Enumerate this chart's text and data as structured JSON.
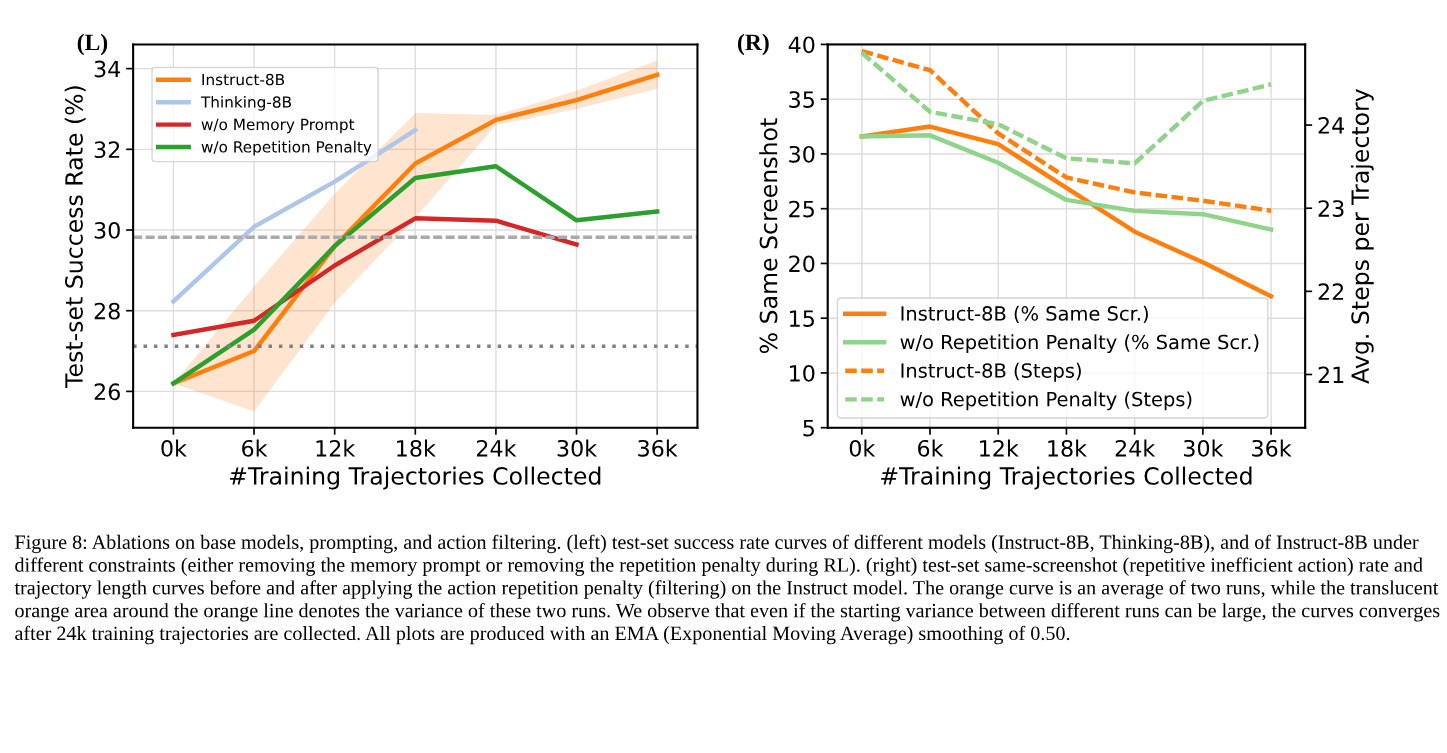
{
  "chart_data": [
    {
      "type": "line",
      "xlabel": "#Training Trajectories Collected",
      "ylabel": "Test-set Success Rate (%)",
      "x": [
        0,
        6,
        12,
        18,
        24,
        30,
        36
      ],
      "xlim": [
        -3,
        39
      ],
      "xticks": [
        {
          "value": 0,
          "label": "0k"
        },
        {
          "value": 6,
          "label": "6k"
        },
        {
          "value": 12,
          "label": "12k"
        },
        {
          "value": 18,
          "label": "18k"
        },
        {
          "value": 24,
          "label": "24k"
        },
        {
          "value": 30,
          "label": "30k"
        },
        {
          "value": 36,
          "label": "36k"
        }
      ],
      "ylim": [
        25.1,
        34.6
      ],
      "yticks": [
        26,
        28,
        30,
        32,
        34
      ],
      "series": [
        {
          "name": "Instruct-8B",
          "color": "#ff7f0e",
          "values": [
            26.2,
            27.0,
            29.6,
            31.65,
            32.73,
            33.22,
            33.85
          ],
          "lower": [
            26.2,
            25.5,
            28.2,
            30.3,
            32.6,
            33.0,
            33.5
          ],
          "upper": [
            26.2,
            28.6,
            30.9,
            32.9,
            32.85,
            33.45,
            34.2
          ]
        },
        {
          "name": "Thinking-8B",
          "color": "#aec7e8",
          "values": [
            28.23,
            30.08,
            31.2,
            32.48,
            null,
            null,
            null
          ]
        },
        {
          "name": "w/o Memory Prompt",
          "color": "#d62728",
          "values": [
            27.4,
            27.75,
            29.12,
            30.29,
            30.23,
            29.64,
            null
          ]
        },
        {
          "name": "w/o Repetition Penalty",
          "color": "#2ca02c",
          "values": [
            26.2,
            27.53,
            29.6,
            31.29,
            31.58,
            30.24,
            30.46
          ]
        }
      ],
      "ref_lines": [
        {
          "axis": "y",
          "value": 27.12,
          "color": "#808080",
          "line_style": "dotted"
        },
        {
          "axis": "y",
          "value": 29.82,
          "color": "#aaaaaa",
          "line_style": "dashed"
        }
      ],
      "grid": true,
      "legend": "top left",
      "line_style": "solid",
      "marker": "none",
      "annotations": [
        "(L)",
        "Figure 8: Ablations on base models, prompting, and action filtering. (left) test-set success rate curves of different models (Instruct-8B, Thinking-8B), and of Instruct-8B under different constraints (either removing the memory prompt or removing the repetition penalty during RL). (right) test-set same-screenshot (repetitive inefficient action) rate and trajectory length curves before and after applying the action repetition penalty (filtering) on the Instruct model. The orange curve is an average of two runs, while the translucent orange area around the orange line denotes the variance of these two runs. We observe that even if the starting variance between different runs can be large, the curves converges after 24k training trajectories are collected. All plots are produced with an EMA (Exponential Moving Average) smoothing of 0.50."
      ]
    },
    {
      "type": "line",
      "xlabel": "#Training Trajectories Collected",
      "ylabel": "% Same Screenshot",
      "y2label": "Avg. Steps per Trajectory",
      "x": [
        0,
        6,
        12,
        18,
        24,
        30,
        36
      ],
      "xlim": [
        -3,
        39
      ],
      "xticks": [
        {
          "value": 0,
          "label": "0k"
        },
        {
          "value": 6,
          "label": "6k"
        },
        {
          "value": 12,
          "label": "12k"
        },
        {
          "value": 18,
          "label": "18k"
        },
        {
          "value": 24,
          "label": "24k"
        },
        {
          "value": 30,
          "label": "30k"
        },
        {
          "value": 36,
          "label": "36k"
        }
      ],
      "ylim": [
        5,
        40
      ],
      "yticks": [
        5,
        10,
        15,
        20,
        25,
        30,
        35,
        40
      ],
      "y2lim": [
        20.36,
        24.97
      ],
      "y2ticks": [
        21,
        22,
        23,
        24
      ],
      "series": [
        {
          "name": "Instruct-8B (% Same Scr.)",
          "color": "#ff7f0e",
          "line_style": "solid",
          "values": [
            31.6,
            32.5,
            30.9,
            26.9,
            22.9,
            20.1,
            17.0
          ]
        },
        {
          "name": "w/o Repetition Penalty (% Same Scr.)",
          "color": "#90d48a",
          "line_style": "solid",
          "values": [
            31.6,
            31.7,
            29.2,
            25.8,
            24.8,
            24.5,
            23.1
          ]
        },
        {
          "name": "Instruct-8B (Steps)",
          "color": "#ff7f0e",
          "line_style": "dashed",
          "axis": "y2",
          "values": [
            24.89,
            24.66,
            23.9,
            23.37,
            23.19,
            23.09,
            22.97
          ]
        },
        {
          "name": "w/o Repetition Penalty (Steps)",
          "color": "#90d48a",
          "line_style": "dashed",
          "axis": "y2",
          "values": [
            24.87,
            24.16,
            24.01,
            23.6,
            23.54,
            24.29,
            24.49
          ]
        }
      ],
      "grid": true,
      "legend": "bottom left",
      "marker": "none",
      "annotations": [
        "(R)"
      ]
    }
  ]
}
